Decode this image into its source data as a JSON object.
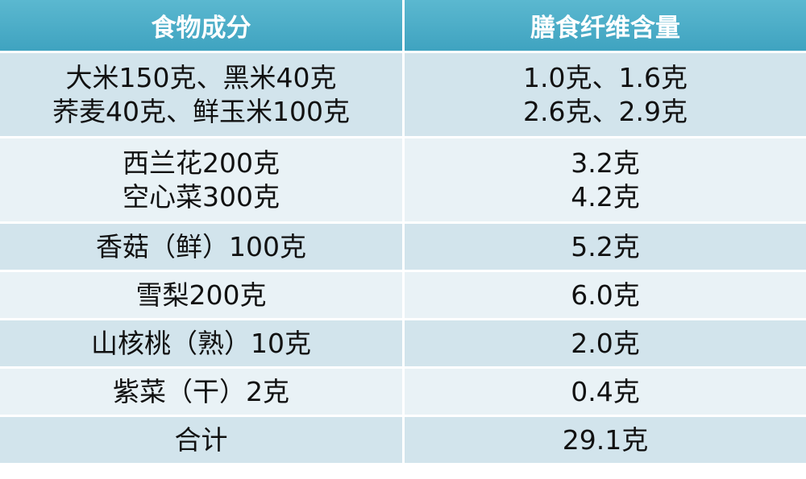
{
  "table": {
    "header": [
      "食物成分",
      "膳食纤维含量"
    ],
    "rows": [
      [
        [
          "大米150克、黑米40克",
          "荞麦40克、鲜玉米100克"
        ],
        [
          "1.0克、1.6克",
          "2.6克、2.9克"
        ]
      ],
      [
        [
          "西兰花200克",
          "空心菜300克"
        ],
        [
          "3.2克",
          "4.2克"
        ]
      ],
      [
        [
          "香菇（鲜）100克"
        ],
        [
          "5.2克"
        ]
      ],
      [
        [
          "雪梨200克"
        ],
        [
          "6.0克"
        ]
      ],
      [
        [
          "山核桃（熟）10克"
        ],
        [
          "2.0克"
        ]
      ],
      [
        [
          "紫菜（干）2克"
        ],
        [
          "0.4克"
        ]
      ],
      [
        [
          "合计"
        ],
        [
          "29.1克"
        ]
      ]
    ]
  }
}
